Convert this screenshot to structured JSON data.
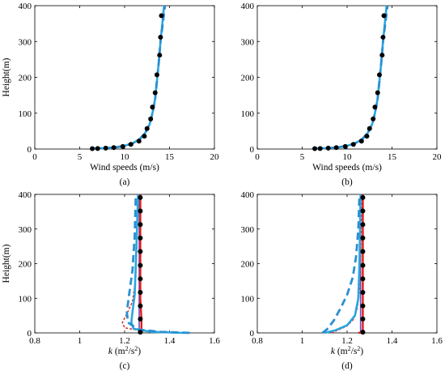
{
  "colors": {
    "axis": "#000000",
    "marker": "#000000",
    "blue_solid": "#29a6e0",
    "blue_dashed": "#2a8fd2",
    "red_solid": "#e01c1c",
    "red_dashed": "#d42020",
    "purple": "#6a4bbd"
  },
  "chart_data": [
    {
      "type": "line",
      "panel_label": "(a)",
      "xlabel": "Wind speeds (m/s)",
      "ylabel": "Height(m)",
      "xlim": [
        0,
        20
      ],
      "ylim": [
        0,
        400
      ],
      "xticks": [
        0,
        5,
        10,
        15,
        20
      ],
      "yticks": [
        0,
        100,
        200,
        300,
        400
      ],
      "grid": false,
      "series": [
        {
          "style": "blue-solid",
          "points": [
            [
              6.6,
              1
            ],
            [
              7.3,
              2
            ],
            [
              8.2,
              3
            ],
            [
              9.1,
              5
            ],
            [
              10.0,
              9
            ],
            [
              10.9,
              16
            ],
            [
              11.7,
              28
            ],
            [
              12.3,
              45
            ],
            [
              12.8,
              70
            ],
            [
              13.1,
              100
            ],
            [
              13.4,
              140
            ],
            [
              13.6,
              190
            ],
            [
              13.8,
              240
            ],
            [
              14.0,
              300
            ],
            [
              14.2,
              350
            ],
            [
              14.4,
              400
            ]
          ]
        },
        {
          "style": "blue-dashed",
          "points": [
            [
              6.6,
              1
            ],
            [
              7.3,
              2
            ],
            [
              8.2,
              3
            ],
            [
              9.1,
              5
            ],
            [
              10.0,
              9
            ],
            [
              10.9,
              16
            ],
            [
              11.7,
              28
            ],
            [
              12.3,
              45
            ],
            [
              12.8,
              70
            ],
            [
              13.1,
              100
            ],
            [
              13.4,
              140
            ],
            [
              13.6,
              190
            ],
            [
              13.8,
              240
            ],
            [
              14.0,
              300
            ],
            [
              14.25,
              350
            ],
            [
              14.5,
              400
            ]
          ]
        },
        {
          "style": "markers",
          "points": [
            [
              6.4,
              1
            ],
            [
              7.0,
              1.5
            ],
            [
              7.9,
              2.5
            ],
            [
              8.8,
              4
            ],
            [
              9.8,
              7
            ],
            [
              10.7,
              13
            ],
            [
              11.6,
              22
            ],
            [
              12.2,
              36
            ],
            [
              12.5,
              57
            ],
            [
              12.9,
              84
            ],
            [
              13.1,
              117
            ],
            [
              13.4,
              157
            ],
            [
              13.6,
              207
            ],
            [
              13.9,
              262
            ],
            [
              14.0,
              312
            ],
            [
              14.1,
              372
            ]
          ]
        }
      ]
    },
    {
      "type": "line",
      "panel_label": "(b)",
      "xlabel": "Wind speeds (m/s)",
      "ylabel": "",
      "xlim": [
        0,
        20
      ],
      "ylim": [
        0,
        400
      ],
      "xticks": [
        0,
        5,
        10,
        15,
        20
      ],
      "yticks": [
        0,
        100,
        200,
        300,
        400
      ],
      "grid": false,
      "series": [
        {
          "style": "blue-solid",
          "points": [
            [
              6.6,
              1
            ],
            [
              7.3,
              2
            ],
            [
              8.2,
              3
            ],
            [
              9.1,
              5
            ],
            [
              10.0,
              9
            ],
            [
              10.9,
              16
            ],
            [
              11.7,
              28
            ],
            [
              12.3,
              45
            ],
            [
              12.8,
              70
            ],
            [
              13.1,
              100
            ],
            [
              13.4,
              140
            ],
            [
              13.6,
              190
            ],
            [
              13.8,
              240
            ],
            [
              14.0,
              300
            ],
            [
              14.2,
              350
            ],
            [
              14.4,
              400
            ]
          ]
        },
        {
          "style": "blue-dashed",
          "points": [
            [
              6.6,
              1
            ],
            [
              7.3,
              2
            ],
            [
              8.2,
              3
            ],
            [
              9.1,
              5
            ],
            [
              10.0,
              9
            ],
            [
              10.9,
              16
            ],
            [
              11.7,
              28
            ],
            [
              12.3,
              45
            ],
            [
              12.8,
              70
            ],
            [
              13.1,
              100
            ],
            [
              13.4,
              140
            ],
            [
              13.6,
              190
            ],
            [
              13.8,
              240
            ],
            [
              14.0,
              300
            ],
            [
              14.25,
              350
            ],
            [
              14.5,
              400
            ]
          ]
        },
        {
          "style": "markers",
          "points": [
            [
              6.4,
              1
            ],
            [
              7.0,
              1.5
            ],
            [
              7.9,
              2.5
            ],
            [
              8.8,
              4
            ],
            [
              9.8,
              7
            ],
            [
              10.7,
              13
            ],
            [
              11.6,
              22
            ],
            [
              12.2,
              36
            ],
            [
              12.5,
              57
            ],
            [
              12.9,
              84
            ],
            [
              13.1,
              117
            ],
            [
              13.4,
              157
            ],
            [
              13.6,
              207
            ],
            [
              13.9,
              262
            ],
            [
              14.0,
              312
            ],
            [
              14.1,
              372
            ]
          ]
        }
      ]
    },
    {
      "type": "line",
      "panel_label": "(c)",
      "xlabel_parts": {
        "k": "k",
        "open": " (m",
        "sup1": "2",
        "slash": "/s",
        "sup2": "2",
        "close": ")"
      },
      "ylabel": "Height(m)",
      "xlim": [
        0.8,
        1.6
      ],
      "ylim": [
        0,
        400
      ],
      "xticks": [
        0.8,
        1,
        1.2,
        1.4,
        1.6
      ],
      "yticks": [
        0,
        100,
        200,
        300,
        400
      ],
      "grid": false,
      "series": [
        {
          "style": "purple-solid",
          "points": [
            [
              1.265,
              0
            ],
            [
              1.265,
              400
            ]
          ]
        },
        {
          "style": "red-solid",
          "points": [
            [
              1.27,
              0
            ],
            [
              1.275,
              3
            ],
            [
              1.275,
              40
            ],
            [
              1.27,
              100
            ],
            [
              1.27,
              400
            ]
          ]
        },
        {
          "style": "red-dashed",
          "points": [
            [
              1.43,
              0
            ],
            [
              1.28,
              5
            ],
            [
              1.2,
              15
            ],
            [
              1.19,
              30
            ],
            [
              1.21,
              55
            ],
            [
              1.235,
              90
            ],
            [
              1.25,
              160
            ],
            [
              1.255,
              250
            ],
            [
              1.26,
              400
            ]
          ]
        },
        {
          "style": "blue-solid",
          "points": [
            [
              1.46,
              0
            ],
            [
              1.32,
              3
            ],
            [
              1.24,
              12
            ],
            [
              1.23,
              30
            ],
            [
              1.235,
              60
            ],
            [
              1.245,
              110
            ],
            [
              1.25,
              200
            ],
            [
              1.255,
              300
            ],
            [
              1.26,
              400
            ]
          ]
        },
        {
          "style": "blue-dashed",
          "points": [
            [
              1.49,
              0
            ],
            [
              1.36,
              3
            ],
            [
              1.26,
              10
            ],
            [
              1.215,
              30
            ],
            [
              1.21,
              60
            ],
            [
              1.22,
              110
            ],
            [
              1.235,
              180
            ],
            [
              1.245,
              280
            ],
            [
              1.25,
              400
            ]
          ]
        },
        {
          "style": "markers",
          "points": [
            [
              1.27,
              2
            ],
            [
              1.27,
              40
            ],
            [
              1.27,
              78
            ],
            [
              1.27,
              117
            ],
            [
              1.27,
              156
            ],
            [
              1.27,
              195
            ],
            [
              1.27,
              235
            ],
            [
              1.27,
              274
            ],
            [
              1.27,
              313
            ],
            [
              1.27,
              352
            ],
            [
              1.27,
              391
            ]
          ]
        }
      ]
    },
    {
      "type": "line",
      "panel_label": "(d)",
      "xlabel_parts": {
        "k": "k",
        "open": " (m",
        "sup1": "2",
        "slash": "/s",
        "sup2": "2",
        "close": ")"
      },
      "ylabel": "",
      "xlim": [
        0.8,
        1.6
      ],
      "ylim": [
        0,
        400
      ],
      "xticks": [
        0.8,
        1,
        1.2,
        1.4,
        1.6
      ],
      "yticks": [
        0,
        100,
        200,
        300,
        400
      ],
      "grid": false,
      "series": [
        {
          "style": "purple-solid",
          "points": [
            [
              1.26,
              0
            ],
            [
              1.26,
              400
            ]
          ]
        },
        {
          "style": "red-solid",
          "points": [
            [
              1.25,
              0
            ],
            [
              1.27,
              2
            ],
            [
              1.27,
              400
            ]
          ]
        },
        {
          "style": "red-dashed",
          "points": [
            [
              1.13,
              0
            ],
            [
              1.16,
              8
            ],
            [
              1.2,
              20
            ],
            [
              1.23,
              40
            ],
            [
              1.245,
              70
            ],
            [
              1.255,
              120
            ],
            [
              1.26,
              200
            ],
            [
              1.265,
              400
            ]
          ]
        },
        {
          "style": "blue-solid",
          "points": [
            [
              1.1,
              0
            ],
            [
              1.15,
              8
            ],
            [
              1.2,
              22
            ],
            [
              1.235,
              50
            ],
            [
              1.25,
              100
            ],
            [
              1.255,
              200
            ],
            [
              1.26,
              400
            ]
          ]
        },
        {
          "style": "blue-dashed",
          "points": [
            [
              1.09,
              0
            ],
            [
              1.11,
              10
            ],
            [
              1.14,
              35
            ],
            [
              1.17,
              70
            ],
            [
              1.2,
              110
            ],
            [
              1.225,
              160
            ],
            [
              1.24,
              220
            ],
            [
              1.25,
              300
            ],
            [
              1.255,
              400
            ]
          ]
        },
        {
          "style": "markers",
          "points": [
            [
              1.27,
              2
            ],
            [
              1.27,
              40
            ],
            [
              1.27,
              78
            ],
            [
              1.27,
              117
            ],
            [
              1.27,
              156
            ],
            [
              1.27,
              195
            ],
            [
              1.27,
              235
            ],
            [
              1.27,
              274
            ],
            [
              1.27,
              313
            ],
            [
              1.27,
              352
            ],
            [
              1.27,
              391
            ]
          ]
        }
      ]
    }
  ]
}
